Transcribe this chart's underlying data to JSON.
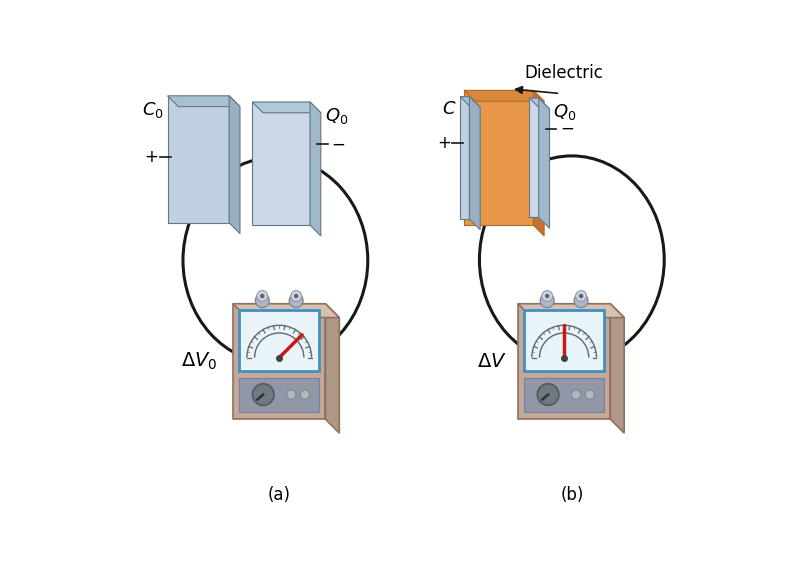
{
  "background_color": "#ffffff",
  "label_C0": "$C_0$",
  "label_Q0_a": "$Q_0$",
  "label_Q0_b": "$Q_0$",
  "label_C": "$C$",
  "label_dV0": "$\\Delta V_0$",
  "label_dV": "$\\Delta V$",
  "label_dielectric": "Dielectric",
  "label_plus": "+",
  "label_minus": "−",
  "plate_front_left": "#c8d8e8",
  "plate_front_right": "#d8e8f4",
  "plate_side": "#a0b8cc",
  "plate_top": "#b0c8dc",
  "dielectric_front": "#e89848",
  "dielectric_side": "#c87030",
  "dielectric_top": "#d88838",
  "meter_body": "#c4a898",
  "meter_body_dark": "#a88878",
  "meter_body_side": "#b09888",
  "meter_face_bg": "#e8f4f8",
  "meter_face_border": "#4090c0",
  "meter_lower_panel": "#9098a8",
  "meter_lower_border": "#7880a0",
  "knob_color": "#707880",
  "knob_dark": "#505860",
  "connector_body": "#b0b8c8",
  "connector_top": "#d0d8e8",
  "wire_color": "#181818",
  "needle_color": "#cc1818",
  "arc_color": "#606870",
  "tick_color": "#606870"
}
